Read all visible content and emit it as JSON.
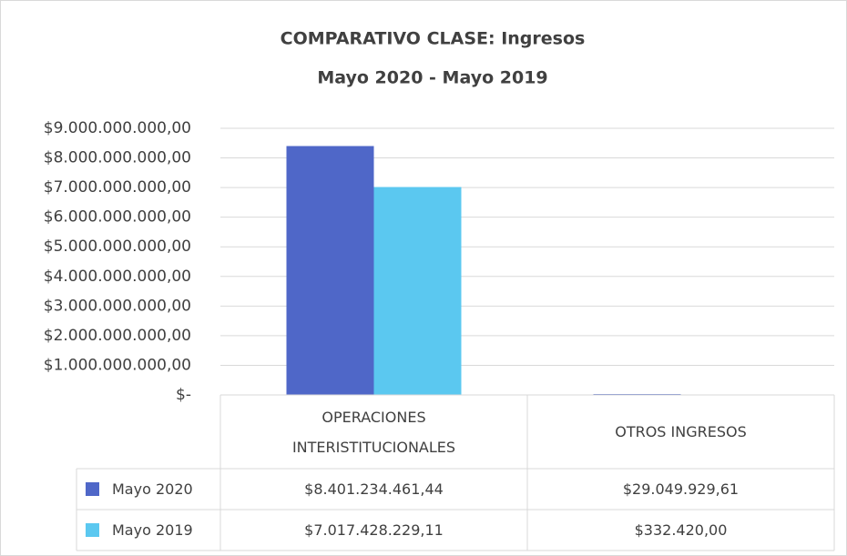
{
  "chart_data": {
    "type": "bar",
    "title": "COMPARATIVO CLASE: Ingresos",
    "subtitle": "Mayo 2020 - Mayo 2019",
    "categories": [
      "OPERACIONES INTERISTITUCIONALES",
      "OTROS INGRESOS"
    ],
    "series": [
      {
        "name": "Mayo 2020",
        "color": "#4f67c8",
        "values": [
          8401234461.44,
          29049929.61
        ],
        "value_labels": [
          "$8.401.234.461,44",
          "$29.049.929,61"
        ]
      },
      {
        "name": "Mayo 2019",
        "color": "#5bc8f0",
        "values": [
          7017428229.11,
          332420
        ],
        "value_labels": [
          "$7.017.428.229,11",
          "$332.420,00"
        ]
      }
    ],
    "ylim": [
      0,
      9000000000
    ],
    "yticks": [
      {
        "value": 0,
        "label": "$-"
      },
      {
        "value": 1000000000,
        "label": "$1.000.000.000,00"
      },
      {
        "value": 2000000000,
        "label": "$2.000.000.000,00"
      },
      {
        "value": 3000000000,
        "label": "$3.000.000.000,00"
      },
      {
        "value": 4000000000,
        "label": "$4.000.000.000,00"
      },
      {
        "value": 5000000000,
        "label": "$5.000.000.000,00"
      },
      {
        "value": 6000000000,
        "label": "$6.000.000.000,00"
      },
      {
        "value": 7000000000,
        "label": "$7.000.000.000,00"
      },
      {
        "value": 8000000000,
        "label": "$8.000.000.000,00"
      },
      {
        "value": 9000000000,
        "label": "$9.000.000.000,00"
      }
    ],
    "grid": true
  }
}
